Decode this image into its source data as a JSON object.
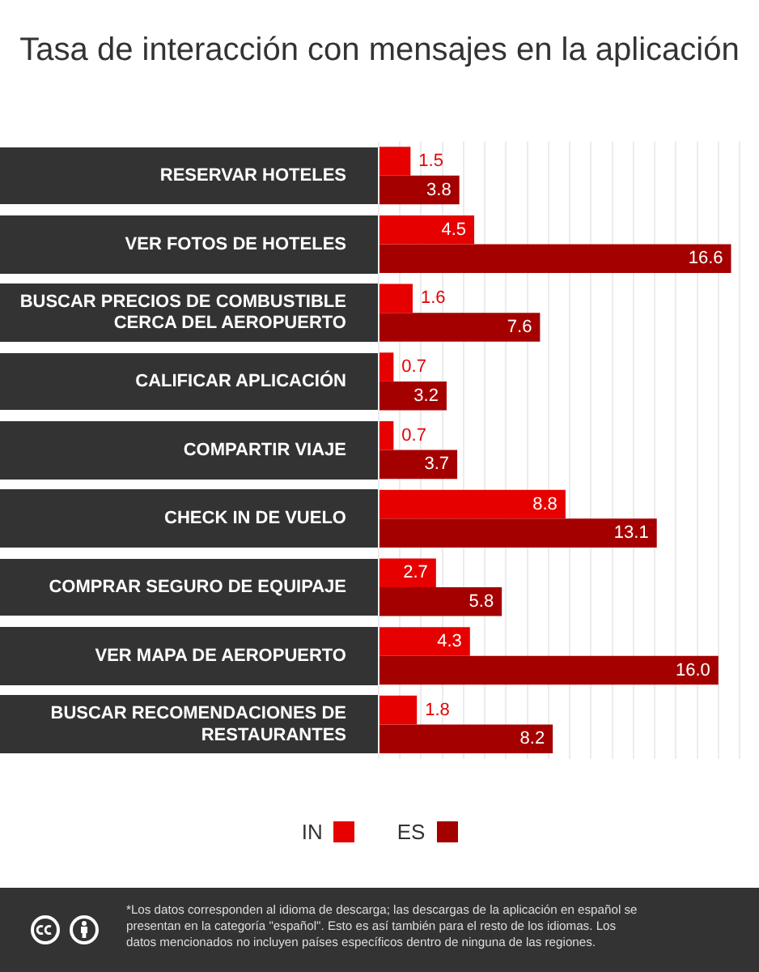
{
  "chart_data": {
    "type": "bar",
    "orientation": "horizontal",
    "title": "Tasa de interacción con mensajes en la aplicación",
    "categories": [
      "RESERVAR HOTELES",
      "VER FOTOS DE HOTELES",
      "BUSCAR PRECIOS DE COMBUSTIBLE CERCA DEL AEROPUERTO",
      "CALIFICAR APLICACIÓN",
      "COMPARTIR VIAJE",
      "CHECK IN DE VUELO",
      "COMPRAR SEGURO DE EQUIPAJE",
      "VER MAPA DE AEROPUERTO",
      "BUSCAR RECOMENDACIONES DE RESTAURANTES"
    ],
    "series": [
      {
        "name": "IN",
        "color": "#e60000",
        "values": [
          1.5,
          4.5,
          1.6,
          0.7,
          0.7,
          8.8,
          2.7,
          4.3,
          1.8
        ],
        "value_labels": [
          "1.5",
          "4.5",
          "1.6",
          "0.7",
          "0.7",
          "8.8",
          "2.7",
          "4.3",
          "1.8"
        ]
      },
      {
        "name": "ES",
        "color": "#a50000",
        "values": [
          3.8,
          16.6,
          7.6,
          3.2,
          3.7,
          13.1,
          5.8,
          16.0,
          8.2
        ],
        "value_labels": [
          "3.8",
          "16.6",
          "7.6",
          "3.2",
          "3.7",
          "13.1",
          "5.8",
          "16.0",
          "8.2"
        ]
      }
    ],
    "xlim": [
      0,
      17
    ],
    "xticks": [
      {
        "value": 0,
        "label": null
      },
      {
        "value": 1,
        "label": null
      },
      {
        "value": 2,
        "label": null
      },
      {
        "value": 3,
        "label": null
      },
      {
        "value": 4,
        "label": null
      },
      {
        "value": 5,
        "label": null
      },
      {
        "value": 6,
        "label": null
      },
      {
        "value": 7,
        "label": null
      },
      {
        "value": 8,
        "label": null
      },
      {
        "value": 9,
        "label": null
      },
      {
        "value": 10,
        "label": null
      },
      {
        "value": 11,
        "label": null
      },
      {
        "value": 12,
        "label": null
      },
      {
        "value": 13,
        "label": null
      },
      {
        "value": 14,
        "label": null
      },
      {
        "value": 15,
        "label": null
      },
      {
        "value": 16,
        "label": null
      },
      {
        "value": 17,
        "label": null
      }
    ],
    "grid": "x",
    "tick_labels": "y",
    "legend": "bottom",
    "annotations": [
      "*Los datos corresponden al idioma de descarga; las descargas de la aplicación en español se presentan en la categoría \"español\". Esto es así también para el resto de los idiomas. Los datos mencionados no incluyen países específicos dentro de ninguna de las regiones."
    ]
  }
}
